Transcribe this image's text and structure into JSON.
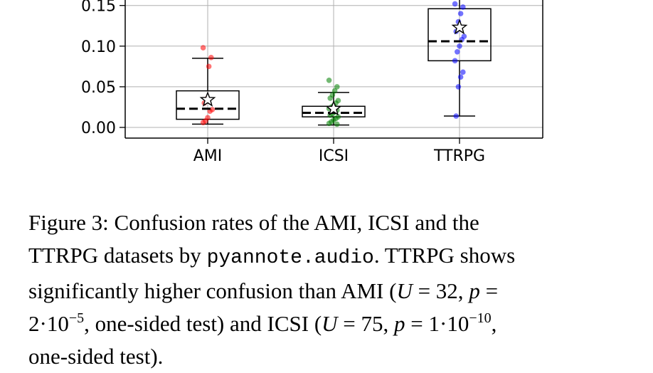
{
  "chart_data": {
    "type": "box",
    "categories": [
      "AMI",
      "ICSI",
      "TTRPG"
    ],
    "ylim": [
      -0.013,
      0.16
    ],
    "yticks": [
      "0.00",
      "0.05",
      "0.10",
      "0.15"
    ],
    "grid": true,
    "boxes": [
      {
        "name": "AMI",
        "color": "#ff0000",
        "whisker_low": 0.004,
        "q1": 0.01,
        "median": 0.023,
        "q3": 0.045,
        "whisker_high": 0.085,
        "mean": 0.034,
        "points": [
          0.098,
          0.086,
          0.075,
          0.035,
          0.03,
          0.022,
          0.02,
          0.012,
          0.008,
          0.006
        ]
      },
      {
        "name": "ICSI",
        "color": "#008000",
        "whisker_low": 0.003,
        "q1": 0.013,
        "median": 0.018,
        "q3": 0.026,
        "whisker_high": 0.043,
        "mean": 0.023,
        "points": [
          0.058,
          0.05,
          0.045,
          0.04,
          0.036,
          0.033,
          0.03,
          0.027,
          0.025,
          0.023,
          0.021,
          0.019,
          0.017,
          0.015,
          0.013,
          0.011,
          0.009,
          0.007,
          0.005,
          0.004
        ]
      },
      {
        "name": "TTRPG",
        "color": "#0000ff",
        "whisker_low": 0.014,
        "q1": 0.082,
        "median": 0.106,
        "q3": 0.146,
        "whisker_high": 0.16,
        "mean": 0.123,
        "points": [
          0.152,
          0.148,
          0.14,
          0.13,
          0.118,
          0.112,
          0.108,
          0.1,
          0.093,
          0.082,
          0.068,
          0.062,
          0.05,
          0.014
        ]
      }
    ]
  },
  "caption": {
    "line1": "Figure 3: Confusion rates of the AMI, ICSI and the",
    "line2_a": "TTRPG datasets by ",
    "line2_code": "pyannote.audio",
    "line2_b": ". TTRPG shows",
    "line3_a": "significantly higher confusion than AMI (",
    "line3_U": "U",
    "line3_b": " = 32, ",
    "line3_p": "p",
    "line3_c": " =",
    "line4_a": "2·10",
    "line4_exp1": "−5",
    "line4_b": ", one-sided test) and ICSI (",
    "line4_U": "U",
    "line4_c": " = 75, ",
    "line4_p": "p",
    "line4_d": " = 1·10",
    "line4_exp2": "−10",
    "line4_e": ",",
    "line5": "one-sided test)."
  }
}
